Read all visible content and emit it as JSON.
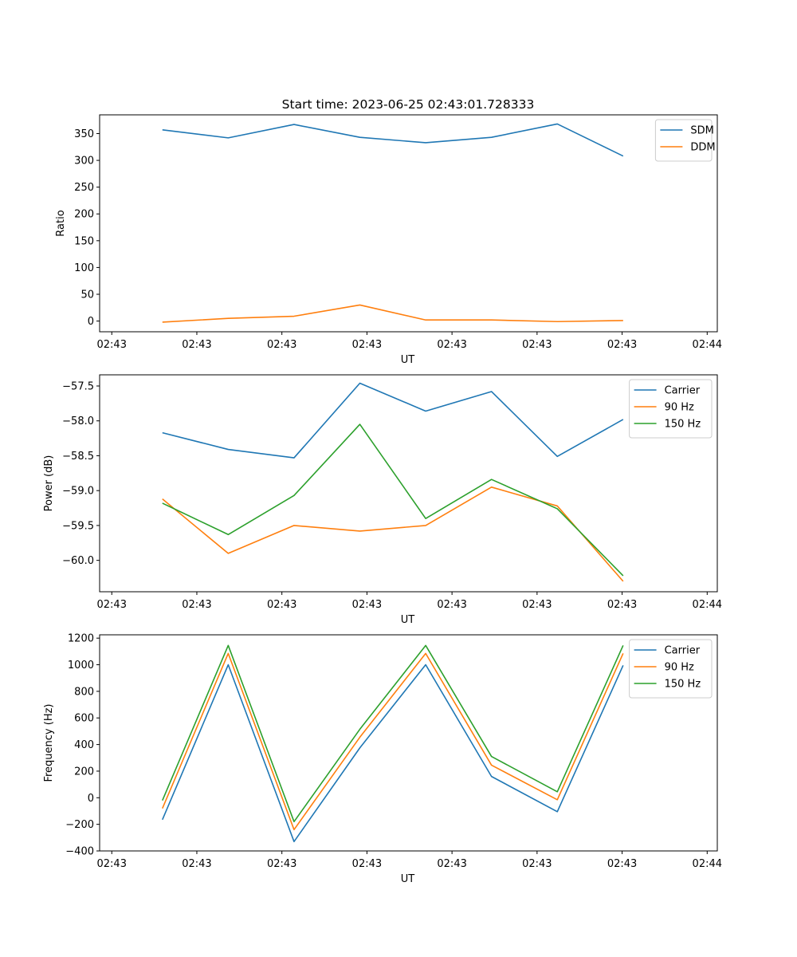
{
  "figure_title": "Start time: 2023-06-25 02:43:01.728333",
  "colors": {
    "blue": "#1f77b4",
    "orange": "#ff7f0e",
    "green": "#2ca02c"
  },
  "chart_data": [
    {
      "type": "line",
      "title": "Start time: 2023-06-25 02:43:01.728333",
      "xlabel": "UT",
      "ylabel": "Ratio",
      "x_tick_labels": [
        "02:43",
        "02:43",
        "02:43",
        "02:43",
        "02:43",
        "02:43",
        "02:43",
        "02:44"
      ],
      "x": [
        0.5,
        1.15,
        1.8,
        2.45,
        3.1,
        3.75,
        4.4,
        5.05
      ],
      "xlim": [
        -0.12,
        5.98
      ],
      "ylim": [
        -20,
        385
      ],
      "yticks": [
        0,
        50,
        100,
        150,
        200,
        250,
        300,
        350
      ],
      "legend_position": "top-right",
      "series": [
        {
          "name": "SDM",
          "color": "#1f77b4",
          "values": [
            357,
            342,
            367,
            343,
            333,
            343,
            368,
            308
          ]
        },
        {
          "name": "DDM",
          "color": "#ff7f0e",
          "values": [
            -2,
            5,
            9,
            30,
            2,
            2,
            -1,
            1
          ]
        }
      ]
    },
    {
      "type": "line",
      "title": "",
      "xlabel": "UT",
      "ylabel": "Power (dB)",
      "x_tick_labels": [
        "02:43",
        "02:43",
        "02:43",
        "02:43",
        "02:43",
        "02:43",
        "02:43",
        "02:44"
      ],
      "x": [
        0.5,
        1.15,
        1.8,
        2.45,
        3.1,
        3.75,
        4.4,
        5.05
      ],
      "xlim": [
        -0.12,
        5.98
      ],
      "ylim": [
        -60.45,
        -57.34
      ],
      "yticks": [
        -60.0,
        -59.5,
        -59.0,
        -58.5,
        -58.0,
        -57.5
      ],
      "legend_position": "top-right",
      "series": [
        {
          "name": "Carrier",
          "color": "#1f77b4",
          "values": [
            -58.17,
            -58.41,
            -58.53,
            -57.46,
            -57.86,
            -57.58,
            -58.51,
            -57.98
          ]
        },
        {
          "name": "90 Hz",
          "color": "#ff7f0e",
          "values": [
            -59.12,
            -59.9,
            -59.5,
            -59.58,
            -59.5,
            -58.95,
            -59.22,
            -60.3
          ]
        },
        {
          "name": "150 Hz",
          "color": "#2ca02c",
          "values": [
            -59.18,
            -59.63,
            -59.07,
            -58.05,
            -59.4,
            -58.84,
            -59.26,
            -60.22
          ]
        }
      ]
    },
    {
      "type": "line",
      "title": "",
      "xlabel": "UT",
      "ylabel": "Frequency (Hz)",
      "x_tick_labels": [
        "02:43",
        "02:43",
        "02:43",
        "02:43",
        "02:43",
        "02:43",
        "02:43",
        "02:44"
      ],
      "x": [
        0.5,
        1.15,
        1.8,
        2.45,
        3.1,
        3.75,
        4.4,
        5.05
      ],
      "xlim": [
        -0.12,
        5.98
      ],
      "ylim": [
        -400,
        1225
      ],
      "yticks": [
        -400,
        -200,
        0,
        200,
        400,
        600,
        800,
        1000,
        1200
      ],
      "legend_position": "top-right",
      "series": [
        {
          "name": "Carrier",
          "color": "#1f77b4",
          "values": [
            -165,
            1000,
            -330,
            375,
            1000,
            160,
            -105,
            995
          ]
        },
        {
          "name": "90 Hz",
          "color": "#ff7f0e",
          "values": [
            -80,
            1085,
            -240,
            455,
            1085,
            245,
            -15,
            1085
          ]
        },
        {
          "name": "150 Hz",
          "color": "#2ca02c",
          "values": [
            -20,
            1145,
            -180,
            515,
            1145,
            310,
            45,
            1145
          ]
        }
      ]
    }
  ]
}
